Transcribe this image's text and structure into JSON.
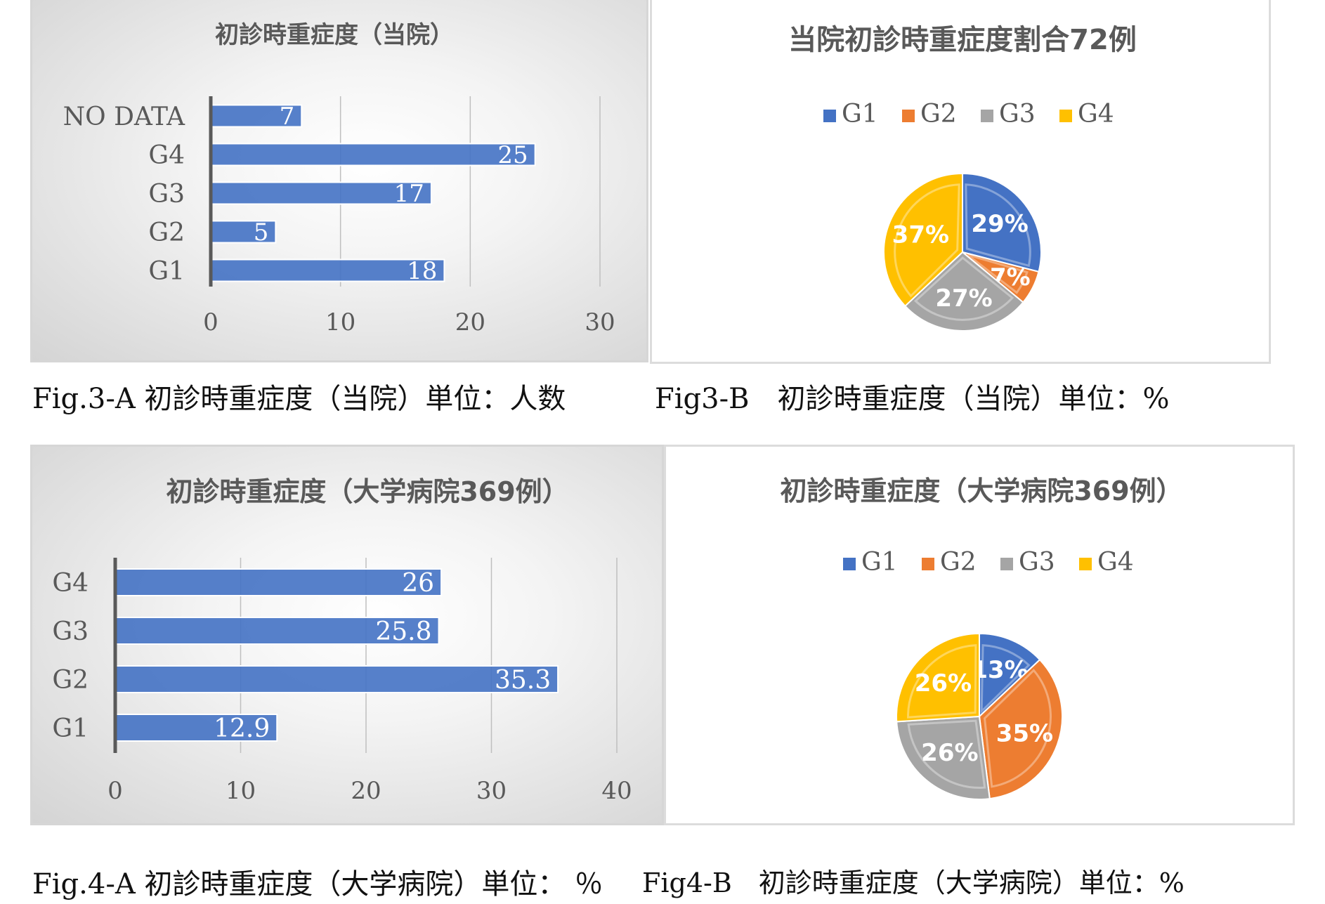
{
  "colors": {
    "bar": "#4472c4",
    "g1": "#4472c4",
    "g2": "#ed7d31",
    "g3": "#a5a5a5",
    "g4": "#ffc000",
    "axis": "#595959",
    "text": "#595959"
  },
  "captions": {
    "fig3a": "Fig.3-A  初診時重症度（当院）単位：人数",
    "fig3b": "Fig3-B　初診時重症度（当院）単位：%",
    "fig4a": "Fig.4-A  初診時重症度（大学病院）単位： ％",
    "fig4b": "Fig4-B　初診時重症度（大学病院）単位：%"
  },
  "chart_data": [
    {
      "id": "fig3a",
      "type": "bar",
      "orientation": "horizontal",
      "title": "初診時重症度（当院）",
      "categories": [
        "G1",
        "G2",
        "G3",
        "G4",
        "NO DATA"
      ],
      "values": [
        18,
        5,
        17,
        25,
        7
      ],
      "data_labels": [
        "18",
        "5",
        "17",
        "25",
        "7"
      ],
      "xlim": [
        0,
        30
      ],
      "xticks": [
        "0",
        "10",
        "20",
        "30"
      ],
      "grid": true
    },
    {
      "id": "fig3b",
      "type": "pie",
      "title": "当院初診時重症度割合72例",
      "labels": [
        "G1",
        "G2",
        "G3",
        "G4"
      ],
      "values": [
        29,
        7,
        27,
        37
      ],
      "data_labels": [
        "29%",
        "7%",
        "27%",
        "37%"
      ],
      "legend": "top"
    },
    {
      "id": "fig4a",
      "type": "bar",
      "orientation": "horizontal",
      "title": "初診時重症度（大学病院369例）",
      "categories": [
        "G1",
        "G2",
        "G3",
        "G4"
      ],
      "values": [
        12.9,
        35.3,
        25.8,
        26
      ],
      "data_labels": [
        "12.9",
        "35.3",
        "25.8",
        "26"
      ],
      "xlim": [
        0,
        40
      ],
      "xticks": [
        "0",
        "10",
        "20",
        "30",
        "40"
      ],
      "grid": true
    },
    {
      "id": "fig4b",
      "type": "pie",
      "title": "初診時重症度（大学病院369例）",
      "labels": [
        "G1",
        "G2",
        "G3",
        "G4"
      ],
      "values": [
        13,
        35,
        26,
        26
      ],
      "data_labels": [
        "13%",
        "35%",
        "26%",
        "26%"
      ],
      "legend": "top"
    }
  ]
}
